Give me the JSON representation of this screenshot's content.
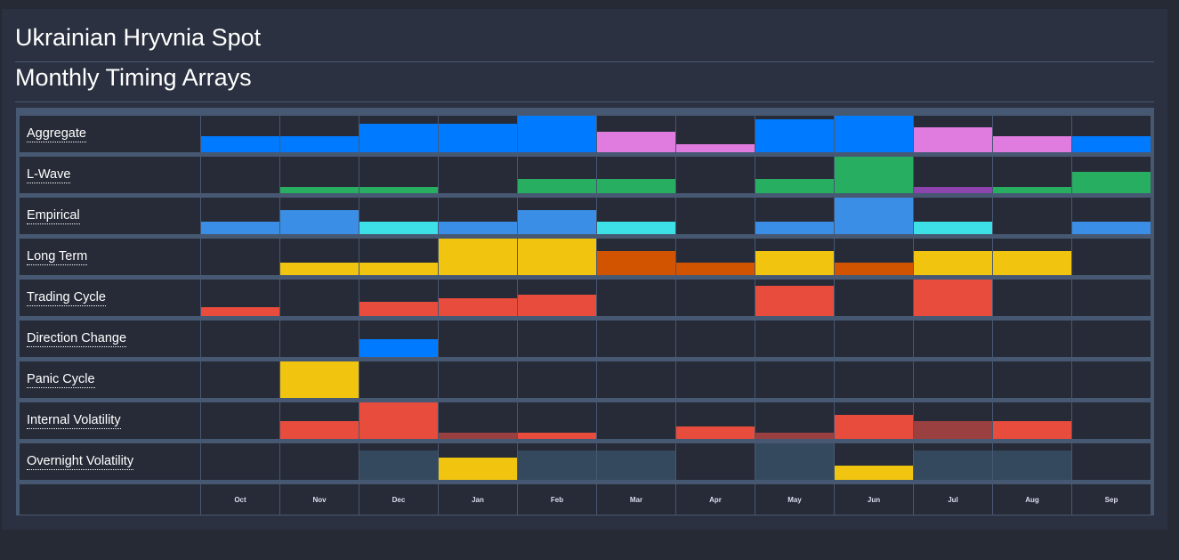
{
  "title": "Ukrainian Hryvnia Spot",
  "subtitle": "Monthly Timing Arrays",
  "months": [
    "Oct",
    "Nov",
    "Dec",
    "Jan",
    "Feb",
    "Mar",
    "Apr",
    "May",
    "Jun",
    "Jul",
    "Aug",
    "Sep"
  ],
  "colors": {
    "blue": "#007bff",
    "pink": "#e07be0",
    "green": "#27ae60",
    "purple": "#8e44ad",
    "lblue": "#3a8ee6",
    "cyan": "#3ce0e6",
    "yellow": "#f1c40f",
    "orange": "#d35400",
    "red": "#e74c3c",
    "darkred": "#9b4040",
    "slate": "#34495e"
  },
  "rows": [
    {
      "label": "Aggregate",
      "values": [
        0.45,
        0.45,
        0.78,
        0.78,
        1,
        0.55,
        0.22,
        0.9,
        1,
        0.68,
        0.45,
        0.45
      ],
      "colors": [
        "blue",
        "blue",
        "blue",
        "blue",
        "blue",
        "pink",
        "pink",
        "blue",
        "blue",
        "pink",
        "pink",
        "blue"
      ]
    },
    {
      "label": "L-Wave",
      "values": [
        0,
        0.18,
        0.18,
        0,
        0.38,
        0.38,
        0,
        0.38,
        1,
        0.18,
        0.18,
        0.58
      ],
      "colors": [
        "green",
        "green",
        "green",
        "green",
        "green",
        "green",
        "green",
        "green",
        "green",
        "purple",
        "green",
        "green"
      ]
    },
    {
      "label": "Empirical",
      "values": [
        0.33,
        0.65,
        0.33,
        0.33,
        0.65,
        0.33,
        0,
        0.33,
        1,
        0.33,
        0,
        0.33
      ],
      "colors": [
        "lblue",
        "lblue",
        "cyan",
        "lblue",
        "lblue",
        "cyan",
        "lblue",
        "lblue",
        "lblue",
        "cyan",
        "lblue",
        "lblue"
      ]
    },
    {
      "label": "Long Term",
      "values": [
        0,
        0.33,
        0.33,
        1,
        1,
        0.67,
        0.33,
        0.67,
        0.33,
        0.67,
        0.67,
        0
      ],
      "colors": [
        "yellow",
        "yellow",
        "yellow",
        "yellow",
        "yellow",
        "orange",
        "orange",
        "yellow",
        "orange",
        "yellow",
        "yellow",
        "yellow"
      ]
    },
    {
      "label": "Trading Cycle",
      "values": [
        0.25,
        0,
        0.4,
        0.5,
        0.58,
        0,
        0,
        0.83,
        0,
        1,
        0,
        0
      ],
      "colors": [
        "red",
        "red",
        "red",
        "red",
        "red",
        "red",
        "red",
        "red",
        "red",
        "red",
        "red",
        "red"
      ]
    },
    {
      "label": "Direction Change",
      "values": [
        0,
        0,
        0.5,
        0,
        0,
        0,
        0,
        0,
        0,
        0,
        0,
        0
      ],
      "colors": [
        "blue",
        "blue",
        "blue",
        "blue",
        "blue",
        "blue",
        "blue",
        "blue",
        "blue",
        "blue",
        "blue",
        "blue"
      ]
    },
    {
      "label": "Panic Cycle",
      "values": [
        0,
        1,
        0,
        0,
        0,
        0,
        0,
        0,
        0,
        0,
        0,
        0
      ],
      "colors": [
        "yellow",
        "yellow",
        "yellow",
        "yellow",
        "yellow",
        "yellow",
        "yellow",
        "yellow",
        "yellow",
        "yellow",
        "yellow",
        "yellow"
      ]
    },
    {
      "label": "Internal Volatility",
      "values": [
        0,
        0.5,
        1,
        0.17,
        0.17,
        0,
        0.33,
        0.17,
        0.67,
        0.5,
        0.5,
        0
      ],
      "colors": [
        "red",
        "red",
        "red",
        "darkred",
        "red",
        "red",
        "red",
        "darkred",
        "red",
        "darkred",
        "red",
        "red"
      ]
    },
    {
      "label": "Overnight Volatility",
      "values": [
        0,
        0,
        0.8,
        0.6,
        0.8,
        0.8,
        0,
        1,
        0.4,
        0.8,
        0.8,
        0
      ],
      "colors": [
        "slate",
        "slate",
        "slate",
        "yellow",
        "slate",
        "slate",
        "slate",
        "slate",
        "yellow",
        "slate",
        "slate",
        "slate"
      ]
    }
  ]
}
